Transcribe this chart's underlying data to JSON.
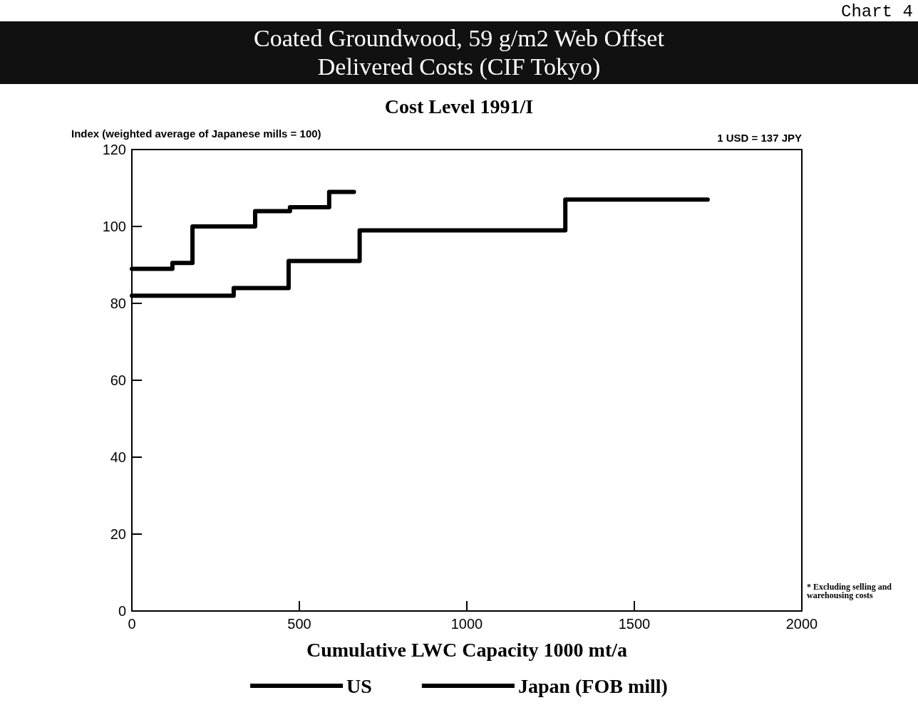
{
  "chart_data": {
    "type": "step",
    "title": "Coated Groundwood, 59 g/m2 Web Offset\nDelivered Costs (CIF Tokyo)",
    "subtitle": "Cost Level 1991/I",
    "xlabel": "Cumulative LWC Capacity 1000 mt/a",
    "ylabel": "Index (weighted average of Japanese mills = 100)",
    "annotations": [
      "Chart 4",
      "1 USD = 137 JPY",
      "* Excluding selling and warehousing costs"
    ],
    "series": [
      {
        "name": "US",
        "color": "#000000",
        "x": [
          0,
          121,
          181,
          368,
          472,
          589,
          663
        ],
        "values": [
          89,
          90.5,
          100,
          104,
          105,
          109,
          109
        ]
      },
      {
        "name": "Japan (FOB mill)",
        "color": "#000000",
        "x": [
          0,
          304,
          468,
          680,
          1014,
          1294,
          1719
        ],
        "values": [
          82,
          84,
          91,
          99,
          99,
          107,
          107
        ]
      }
    ],
    "xlim": [
      0,
      2000
    ],
    "xticks": [
      0,
      500,
      1000,
      1500,
      2000
    ],
    "ylim": [
      0,
      120
    ],
    "yticks": [
      0,
      20,
      40,
      60,
      80,
      100,
      120
    ],
    "grid": false,
    "legend": "bottom",
    "line_style": "solid",
    "marker": "none"
  }
}
